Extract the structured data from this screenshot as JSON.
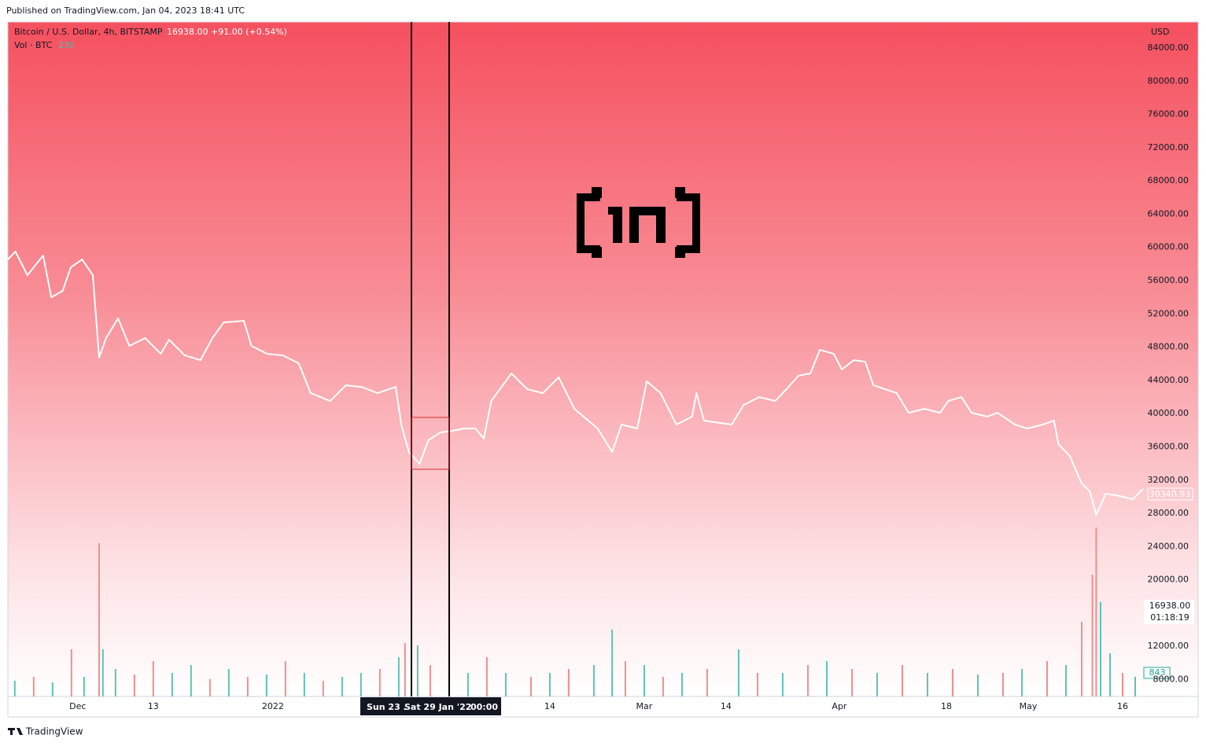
{
  "header": "Published on TradingView.com, Jan 04, 2023 18:41 UTC",
  "footer": "TradingView",
  "chart_data": {
    "type": "line",
    "legend": {
      "price": "16938.00",
      "change": "+91.00 (+0.54%)",
      "volume": "230"
    },
    "y_unit": "USD",
    "price_labels": {
      "last_visible": "30340.93",
      "current": "16938.00",
      "countdown": "01:18:19",
      "volume": "843"
    },
    "crosshair": [
      "Sun 23 .",
      "Sat 29 Jan '22",
      "00:00"
    ],
    "xlim": [
      -42.1,
      138.25
    ],
    "xticks": [
      {
        "value": -31,
        "label": "Dec"
      },
      {
        "value": -19,
        "label": "13"
      },
      {
        "value": 0,
        "label": "2022"
      },
      {
        "value": 44,
        "label": "14"
      },
      {
        "value": 59,
        "label": "Mar"
      },
      {
        "value": 72,
        "label": "14"
      },
      {
        "value": 90,
        "label": "Apr"
      },
      {
        "value": 107,
        "label": "18"
      },
      {
        "value": 120,
        "label": "May"
      },
      {
        "value": 135,
        "label": "16"
      }
    ],
    "ylim": [
      5970,
      87120
    ],
    "yticks": [
      {
        "value": 8000,
        "label": "8000.00"
      },
      {
        "value": 12000,
        "label": "12000.00"
      },
      {
        "value": 20000,
        "label": "20000.00"
      },
      {
        "value": 24000,
        "label": "24000.00"
      },
      {
        "value": 28000,
        "label": "28000.00"
      },
      {
        "value": 32000,
        "label": "32000.00"
      },
      {
        "value": 36000,
        "label": "36000.00"
      },
      {
        "value": 40000,
        "label": "40000.00"
      },
      {
        "value": 44000,
        "label": "44000.00"
      },
      {
        "value": 48000,
        "label": "48000.00"
      },
      {
        "value": 52000,
        "label": "52000.00"
      },
      {
        "value": 56000,
        "label": "56000.00"
      },
      {
        "value": 60000,
        "label": "60000.00"
      },
      {
        "value": 64000,
        "label": "64000.00"
      },
      {
        "value": 68000,
        "label": "68000.00"
      },
      {
        "value": 72000,
        "label": "72000.00"
      },
      {
        "value": 76000,
        "label": "76000.00"
      },
      {
        "value": 80000,
        "label": "80000.00"
      },
      {
        "value": 84000,
        "label": "84000.00"
      }
    ],
    "y2lim": [
      0,
      8580
    ],
    "series": [
      {
        "name": "Bitcoin / U.S. Dollar, 4h, BITSTAMP",
        "color": "#ffffff",
        "x": [
          -42.1,
          -40.9,
          -39,
          -36.5,
          -35.2,
          -33.4,
          -32.1,
          -30.3,
          -28.6,
          -27.6,
          -26.5,
          -24.6,
          -22.8,
          -20.3,
          -17.8,
          -16.5,
          -14,
          -11.5,
          -9.6,
          -7.8,
          -4.6,
          -3.4,
          -0.9,
          1.6,
          4.1,
          6,
          9.1,
          11.6,
          14.1,
          16.6,
          19.5,
          20.4,
          21.6,
          23.3,
          24.7,
          26.6,
          28.5,
          30.4,
          32.2,
          33.5,
          34.7,
          37.9,
          40.4,
          42.9,
          45.4,
          47.9,
          51.6,
          53.9,
          55.4,
          57.9,
          59.4,
          61.6,
          64.1,
          66.6,
          67.3,
          68.5,
          72.9,
          74.8,
          77.3,
          79.8,
          81.6,
          83.5,
          85.4,
          86.9,
          89.1,
          90.4,
          92.3,
          94.1,
          95.4,
          99.1,
          101,
          103.5,
          106,
          107.3,
          109.4,
          111,
          113.5,
          115.1,
          117.9,
          119.8,
          122.3,
          124.1,
          124.8,
          126.6,
          128.5,
          129.8,
          130.8,
          132.3,
          134.1,
          136.6,
          138.25
        ],
        "values": [
          58550,
          59500,
          56660,
          59030,
          54000,
          54770,
          57600,
          58550,
          56660,
          46730,
          49090,
          51460,
          48150,
          49090,
          47200,
          48900,
          47010,
          46440,
          49090,
          50980,
          51170,
          48150,
          47200,
          47010,
          46060,
          42470,
          41520,
          43410,
          43220,
          42470,
          43220,
          38690,
          35380,
          33960,
          36790,
          37740,
          37930,
          38210,
          38210,
          37000,
          41520,
          44840,
          42950,
          42470,
          44370,
          40580,
          38210,
          35380,
          38690,
          38210,
          43890,
          42470,
          38690,
          39640,
          42470,
          39160,
          38690,
          41050,
          42000,
          41520,
          42950,
          44560,
          44840,
          47670,
          47200,
          45310,
          46440,
          46250,
          43410,
          42470,
          40100,
          40580,
          40100,
          41520,
          42000,
          40100,
          39640,
          40100,
          38690,
          38210,
          38690,
          39160,
          36320,
          34900,
          31590,
          30640,
          27810,
          30360,
          30170,
          29700,
          30930
        ]
      },
      {
        "name": "Vol · BTC",
        "type": "bar",
        "axis": "y2",
        "x": [
          -41,
          -38,
          -35,
          -32,
          -30,
          -27.6,
          -27,
          -25,
          -22,
          -19,
          -16,
          -13,
          -10,
          -7,
          -4,
          -1,
          2,
          5,
          8,
          11,
          14,
          17,
          20,
          21,
          23,
          25,
          28,
          31,
          34,
          37,
          41,
          44,
          47,
          51,
          53.9,
          56,
          59,
          62,
          65,
          69,
          74,
          77,
          81,
          85,
          88,
          92,
          96,
          100,
          104,
          108,
          112,
          116,
          119,
          123,
          126,
          128.5,
          130.2,
          130.8,
          131.5,
          133,
          135,
          137
        ],
        "values": [
          200,
          250,
          180,
          600,
          250,
          1950,
          600,
          350,
          280,
          450,
          300,
          400,
          220,
          350,
          250,
          280,
          450,
          300,
          200,
          250,
          300,
          350,
          500,
          680,
          650,
          400,
          250,
          300,
          500,
          300,
          250,
          300,
          350,
          400,
          850,
          450,
          400,
          250,
          300,
          350,
          600,
          300,
          300,
          400,
          450,
          350,
          300,
          400,
          300,
          350,
          280,
          300,
          350,
          450,
          400,
          950,
          1550,
          2150,
          1200,
          550,
          300,
          250
        ],
        "colors": [
          "#62c1b4",
          "#ef8f8f",
          "#62c1b4",
          "#ef8f8f",
          "#62c1b4",
          "#ef8f8f",
          "#62c1b4",
          "#62c1b4",
          "#ef8f8f",
          "#ef8f8f",
          "#62c1b4",
          "#62c1b4",
          "#ef8f8f",
          "#62c1b4",
          "#ef8f8f",
          "#62c1b4",
          "#ef8f8f",
          "#62c1b4",
          "#ef8f8f",
          "#62c1b4",
          "#62c1b4",
          "#ef8f8f",
          "#62c1b4",
          "#ef8f8f",
          "#62c1b4",
          "#ef8f8f",
          "#62c1b4",
          "#62c1b4",
          "#ef8f8f",
          "#62c1b4",
          "#ef8f8f",
          "#62c1b4",
          "#ef8f8f",
          "#62c1b4",
          "#62c1b4",
          "#ef8f8f",
          "#62c1b4",
          "#ef8f8f",
          "#62c1b4",
          "#ef8f8f",
          "#62c1b4",
          "#ef8f8f",
          "#62c1b4",
          "#ef8f8f",
          "#62c1b4",
          "#ef8f8f",
          "#62c1b4",
          "#ef8f8f",
          "#62c1b4",
          "#ef8f8f",
          "#62c1b4",
          "#ef8f8f",
          "#62c1b4",
          "#ef8f8f",
          "#62c1b4",
          "#ef8f8f",
          "#ef8f8f",
          "#ef8f8f",
          "#62c1b4",
          "#62c1b4",
          "#ef8f8f",
          "#62c1b4"
        ]
      }
    ]
  }
}
